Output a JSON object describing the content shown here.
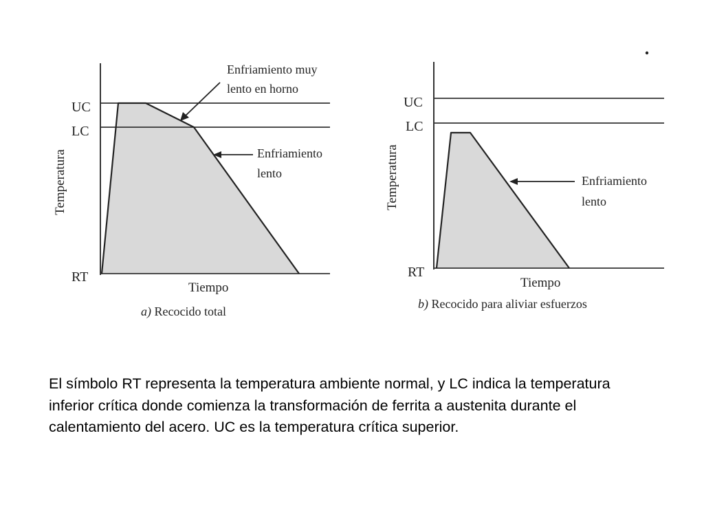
{
  "diagrams": [
    {
      "id": "a",
      "caption_letter": "a)",
      "caption_text": " Recocido total",
      "y_axis_label": "Temperatura",
      "x_axis_label": "Tiempo",
      "levels": [
        "UC",
        "LC",
        "RT"
      ],
      "annotations": [
        "Enfriamiento muy",
        "lento en horno",
        "Enfriamiento",
        "lento"
      ]
    },
    {
      "id": "b",
      "caption_letter": "b)",
      "caption_text": " Recocido para aliviar esfuerzos",
      "y_axis_label": "Temperatura",
      "x_axis_label": "Tiempo",
      "levels": [
        "UC",
        "LC",
        "RT"
      ],
      "annotations": [
        "Enfriamiento",
        "lento"
      ]
    }
  ],
  "caption": "El símbolo RT representa la temperatura ambiente normal, y LC indica la temperatura inferior crítica donde comienza la transformación de ferrita a austenita durante el calentamiento del acero. UC es la temperatura crítica superior."
}
